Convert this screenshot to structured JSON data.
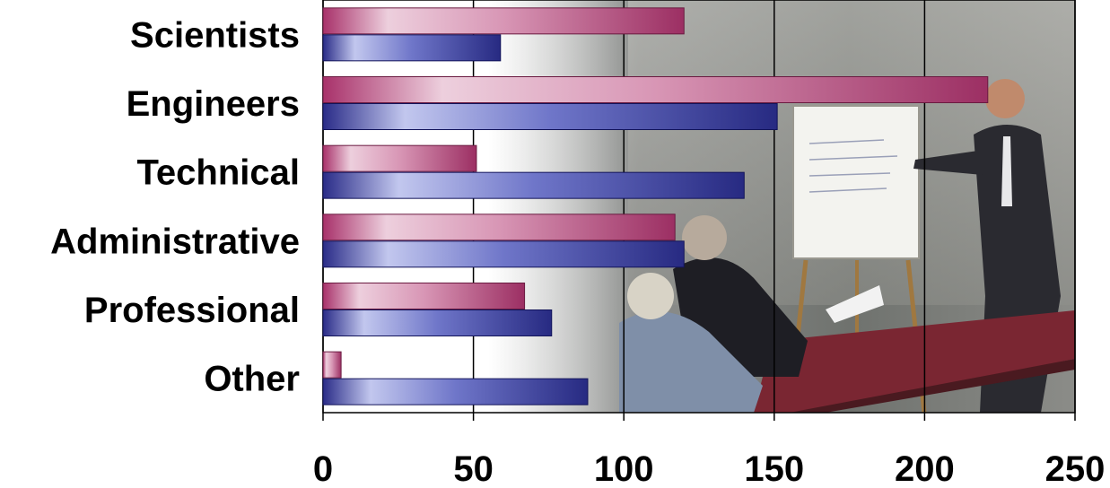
{
  "chart_data": {
    "type": "bar",
    "orientation": "horizontal",
    "categories": [
      "Scientists",
      "Engineers",
      "Technical",
      "Administrative",
      "Professional",
      "Other"
    ],
    "series": [
      {
        "values": [
          120,
          221,
          51,
          117,
          67,
          6
        ],
        "color": "#a0356a"
      },
      {
        "values": [
          59,
          151,
          140,
          120,
          76,
          88
        ],
        "color": "#2b2d8a"
      }
    ],
    "xlim": [
      0,
      250
    ],
    "xticks": [
      0,
      50,
      100,
      150,
      200,
      250
    ],
    "grid": "vertical-major",
    "legend": "none",
    "background": "photograph of a presenter at a flip chart with an audience seated at a table"
  }
}
